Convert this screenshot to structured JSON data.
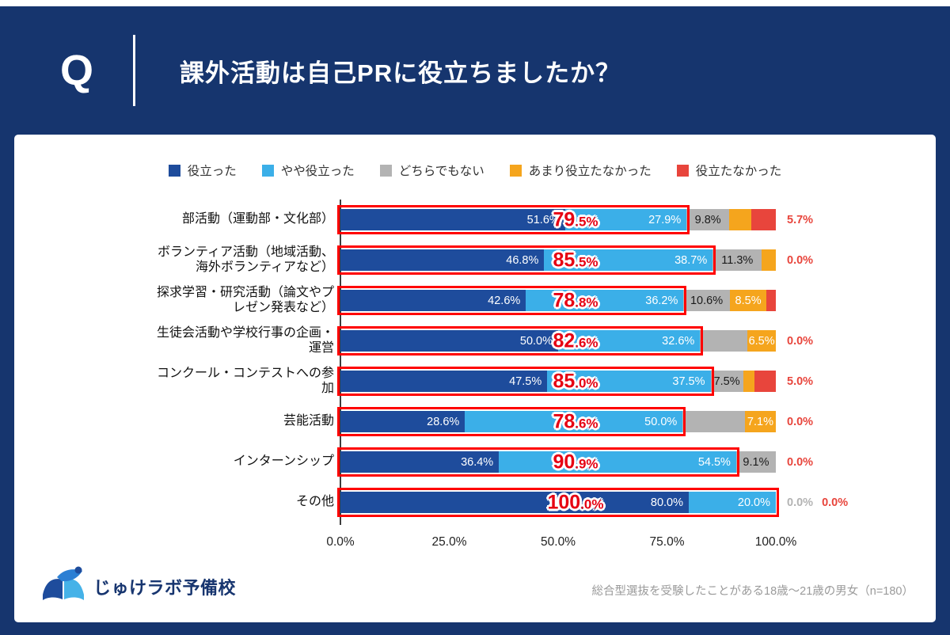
{
  "header": {
    "q_label": "Q",
    "title": "課外活動は自己PRに役立ちましたか？"
  },
  "legend": {
    "items": [
      {
        "key": "helped",
        "label": "役立った",
        "color": "#1E4C9C"
      },
      {
        "key": "somewhat-helped",
        "label": "やや役立った",
        "color": "#3BAFE8"
      },
      {
        "key": "neither",
        "label": "どちらでもない",
        "color": "#B3B3B3"
      },
      {
        "key": "not-very-helpful",
        "label": "あまり役立たなかった",
        "color": "#F5A51D"
      },
      {
        "key": "not-helpful",
        "label": "役立たなかった",
        "color": "#E8453C"
      }
    ]
  },
  "chart_data": {
    "type": "bar",
    "orientation": "horizontal",
    "stacked": true,
    "unit": "%",
    "xlim": [
      0,
      100
    ],
    "x_ticks": [
      "0.0%",
      "25.0%",
      "50.0%",
      "75.0%",
      "100.0%"
    ],
    "series_order": [
      "役立った",
      "やや役立った",
      "どちらでもない",
      "あまり役立たなかった",
      "役立たなかった"
    ],
    "rows": [
      {
        "category": "部活動（運動部・文化部）",
        "label_lines": [
          "部活動（運動部・文化部）"
        ],
        "values": [
          51.6,
          27.9,
          9.8,
          5.0,
          5.7
        ],
        "segment_labels": [
          "51.6%",
          "27.9%",
          "9.8%",
          "",
          ""
        ],
        "combined_label": "79.5%",
        "right_labels": [
          {
            "text": "5.7%",
            "color": "red"
          }
        ]
      },
      {
        "category": "ボランティア活動（地域活動、海外ボランティアなど）",
        "label_lines": [
          "ボランティア活動（地域活動、",
          "海外ボランティアなど）"
        ],
        "values": [
          46.8,
          38.7,
          11.3,
          3.2,
          0
        ],
        "segment_labels": [
          "46.8%",
          "38.7%",
          "11.3%",
          "",
          ""
        ],
        "combined_label": "85.5%",
        "right_labels": [
          {
            "text": "0.0%",
            "color": "red"
          }
        ]
      },
      {
        "category": "探求学習・研究活動（論文やプレゼン発表など）",
        "label_lines": [
          "探求学習・研究活動（論文やプ",
          "レゼン発表など）"
        ],
        "values": [
          42.6,
          36.2,
          10.6,
          8.5,
          2.1
        ],
        "segment_labels": [
          "42.6%",
          "36.2%",
          "10.6%",
          "8.5%",
          ""
        ],
        "combined_label": "78.8%",
        "right_labels": []
      },
      {
        "category": "生徒会活動や学校行事の企画・運営",
        "label_lines": [
          "生徒会活動や学校行事の企画・",
          "運営"
        ],
        "values": [
          50.0,
          32.6,
          10.9,
          6.5,
          0
        ],
        "segment_labels": [
          "50.0%",
          "32.6%",
          "",
          "6.5%",
          ""
        ],
        "combined_label": "82.6%",
        "right_labels": [
          {
            "text": "0.0%",
            "color": "red"
          }
        ]
      },
      {
        "category": "コンクール・コンテストへの参加",
        "label_lines": [
          "コンクール・コンテストへの参",
          "加"
        ],
        "values": [
          47.5,
          37.5,
          7.5,
          2.5,
          5.0
        ],
        "segment_labels": [
          "47.5%",
          "37.5%",
          "7.5%",
          "",
          ""
        ],
        "combined_label": "85.0%",
        "right_labels": [
          {
            "text": "5.0%",
            "color": "red"
          }
        ]
      },
      {
        "category": "芸能活動",
        "label_lines": [
          "芸能活動"
        ],
        "values": [
          28.6,
          50.0,
          14.3,
          7.1,
          0
        ],
        "segment_labels": [
          "28.6%",
          "50.0%",
          "",
          "7.1%",
          ""
        ],
        "combined_label": "78.6%",
        "right_labels": [
          {
            "text": "0.0%",
            "color": "red"
          }
        ]
      },
      {
        "category": "インターンシップ",
        "label_lines": [
          "インターンシップ"
        ],
        "values": [
          36.4,
          54.5,
          9.1,
          0,
          0
        ],
        "segment_labels": [
          "36.4%",
          "54.5%",
          "9.1%",
          "",
          ""
        ],
        "combined_label": "90.9%",
        "right_labels": [
          {
            "text": "0.0%",
            "color": "red"
          }
        ]
      },
      {
        "category": "その他",
        "label_lines": [
          "その他"
        ],
        "values": [
          80.0,
          20.0,
          0,
          0,
          0
        ],
        "segment_labels": [
          "80.0%",
          "20.0%",
          "",
          "",
          ""
        ],
        "combined_label": "100.0%",
        "right_labels": [
          {
            "text": "0.0%",
            "color": "gray"
          },
          {
            "text": "0.0%",
            "color": "red"
          }
        ]
      }
    ]
  },
  "footer": {
    "logo_text": "じゅけラボ予備校",
    "source": "総合型選抜を受験したことがある18歳～21歳の男女（n=180）"
  }
}
